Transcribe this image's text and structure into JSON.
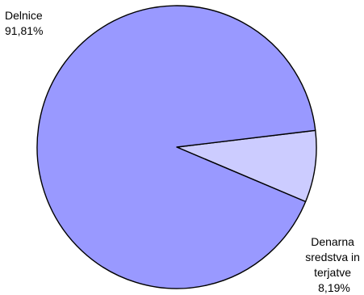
{
  "chart_data": {
    "type": "pie",
    "slices": [
      {
        "label_lines": [
          "Delnice",
          "91,81%"
        ],
        "value": 91.81,
        "color": "#9999ff"
      },
      {
        "label_lines": [
          "Denarna",
          "sredstva in",
          "terjatve",
          "8,19%"
        ],
        "value": 8.19,
        "color": "#ccccff"
      }
    ],
    "legend": "none"
  }
}
